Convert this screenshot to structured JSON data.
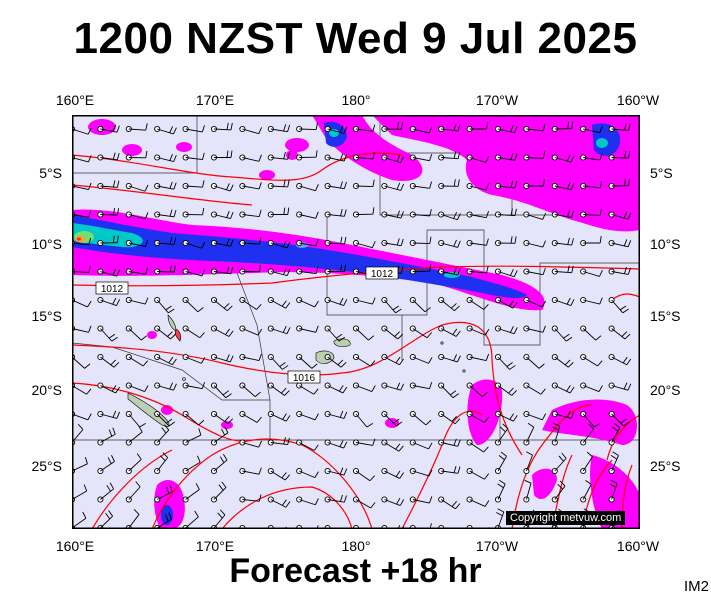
{
  "header": {
    "title": "1200 NZST Wed 9 Jul 2025"
  },
  "footer": {
    "forecast": "Forecast +18 hr",
    "code": "IM2"
  },
  "map": {
    "lon_labels": [
      "160°E",
      "170°E",
      "180°",
      "170°W",
      "160°W"
    ],
    "lat_labels": [
      "5°S",
      "10°S",
      "15°S",
      "20°S",
      "25°S"
    ],
    "isobar_labels": [
      "1012",
      "1012",
      "1016"
    ],
    "copyright": "Copyright metvuw.com",
    "colors": {
      "background": "#e4e4fa",
      "isobar": "#ff0000",
      "rain_light": "#ff00ff",
      "rain_medium": "#2020ff",
      "rain_heavy": "#00c8c8",
      "land": "#bcd0b0"
    }
  }
}
